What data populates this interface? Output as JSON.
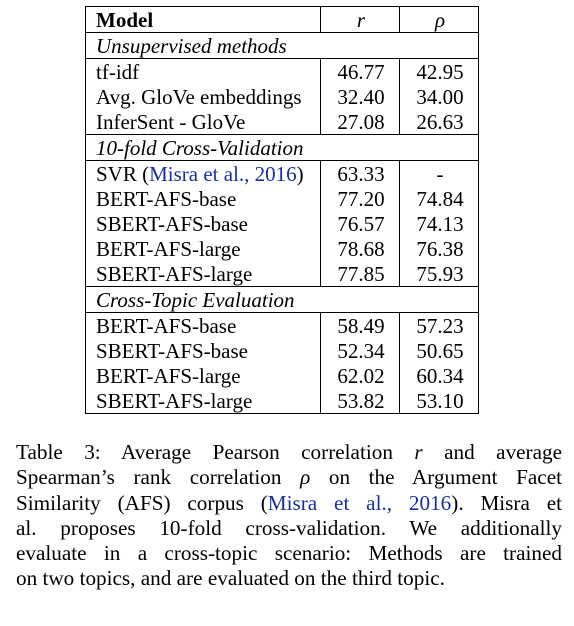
{
  "table": {
    "header": {
      "model": "Model",
      "r": "r",
      "rho": "ρ"
    },
    "sections": [
      {
        "title": "Unsupervised methods",
        "rows": [
          {
            "model": "tf-idf",
            "r": "46.77",
            "rho": "42.95"
          },
          {
            "model": "Avg. GloVe embeddings",
            "r": "32.40",
            "rho": "34.00"
          },
          {
            "model": "InferSent - GloVe",
            "r": "27.08",
            "rho": "26.63"
          }
        ]
      },
      {
        "title": "10-fold Cross-Validation",
        "rows": [
          {
            "model": "SVR (",
            "citation": "Misra et al., 2016",
            "model_suffix": ")",
            "r": "63.33",
            "rho": "-"
          },
          {
            "model": "BERT-AFS-base",
            "r": "77.20",
            "rho": "74.84"
          },
          {
            "model": "SBERT-AFS-base",
            "r": "76.57",
            "rho": "74.13"
          },
          {
            "model": "BERT-AFS-large",
            "r": "78.68",
            "rho": "76.38"
          },
          {
            "model": "SBERT-AFS-large",
            "r": "77.85",
            "rho": "75.93"
          }
        ]
      },
      {
        "title": "Cross-Topic Evaluation",
        "rows": [
          {
            "model": "BERT-AFS-base",
            "r": "58.49",
            "rho": "57.23"
          },
          {
            "model": "SBERT-AFS-base",
            "r": "52.34",
            "rho": "50.65"
          },
          {
            "model": "BERT-AFS-large",
            "r": "62.02",
            "rho": "60.34"
          },
          {
            "model": "SBERT-AFS-large",
            "r": "53.82",
            "rho": "53.10"
          }
        ]
      }
    ]
  },
  "caption": {
    "l1a": "Table 3:  Average Pearson correlation",
    "l1r": "r",
    "l1b": "and average",
    "l2a": "Spearman’s rank correlation",
    "l2rho": "ρ",
    "l2b": "on the Argument Facet",
    "l3a": "Similarity (AFS) corpus (",
    "l3cite": "Misra et al., 2016",
    "l3b": ").  Misra et",
    "l4": "al. proposes 10-fold cross-validation.  We additionally",
    "l5": "evaluate in a cross-topic scenario: Methods are trained",
    "l6": "on two topics, and are evaluated on the third topic."
  },
  "colors": {
    "citation": "#1a2ea5",
    "text": "#000000"
  }
}
